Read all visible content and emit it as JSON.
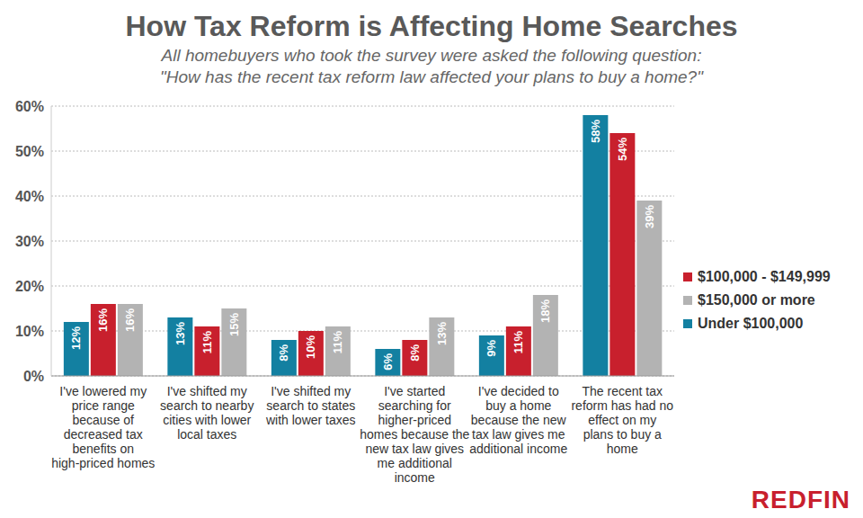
{
  "chart_data": {
    "type": "bar",
    "title": "How Tax Reform is Affecting Home Searches",
    "subtitle": [
      "All homebuyers who took the survey were asked the following question:",
      "\"How has the recent tax reform law affected your plans to buy a home?\""
    ],
    "categories": [
      "I've lowered my price range because of decreased tax benefits on high-priced homes",
      "I've shifted my search to nearby cities with lower local taxes",
      "I've shifted my search to states with lower taxes",
      "I've started searching for higher-priced homes because the new tax law gives me additional income",
      "I've decided to buy a home because the new tax law gives me additional income",
      "The recent tax reform has had no effect on my plans to buy a home"
    ],
    "series": [
      {
        "name": "Under $100,000",
        "color": "#1380a1",
        "values": [
          12,
          13,
          8,
          6,
          9,
          58
        ],
        "value_labels": [
          "12%",
          "13%",
          "8%",
          "6%",
          "9%",
          "58%"
        ]
      },
      {
        "name": "$100,000 - $149,999",
        "color": "#c8202d",
        "values": [
          16,
          11,
          10,
          8,
          11,
          54
        ],
        "value_labels": [
          "16%",
          "11%",
          "10%",
          "8%",
          "11%",
          "54%"
        ]
      },
      {
        "name": "$150,000 or more",
        "color": "#b3b3b3",
        "values": [
          16,
          15,
          11,
          13,
          18,
          39
        ],
        "value_labels": [
          "16%",
          "15%",
          "11%",
          "13%",
          "18%",
          "39%"
        ]
      }
    ],
    "ylim": [
      0,
      60
    ],
    "yticks": [
      {
        "value": 0,
        "label": "0%"
      },
      {
        "value": 10,
        "label": "10%"
      },
      {
        "value": 20,
        "label": "20%"
      },
      {
        "value": 30,
        "label": "30%"
      },
      {
        "value": 40,
        "label": "40%"
      },
      {
        "value": 50,
        "label": "50%"
      },
      {
        "value": 60,
        "label": "60%"
      }
    ],
    "grid": true,
    "legend": "right",
    "data_labels": true,
    "annotations": [
      "REDFIN"
    ]
  }
}
